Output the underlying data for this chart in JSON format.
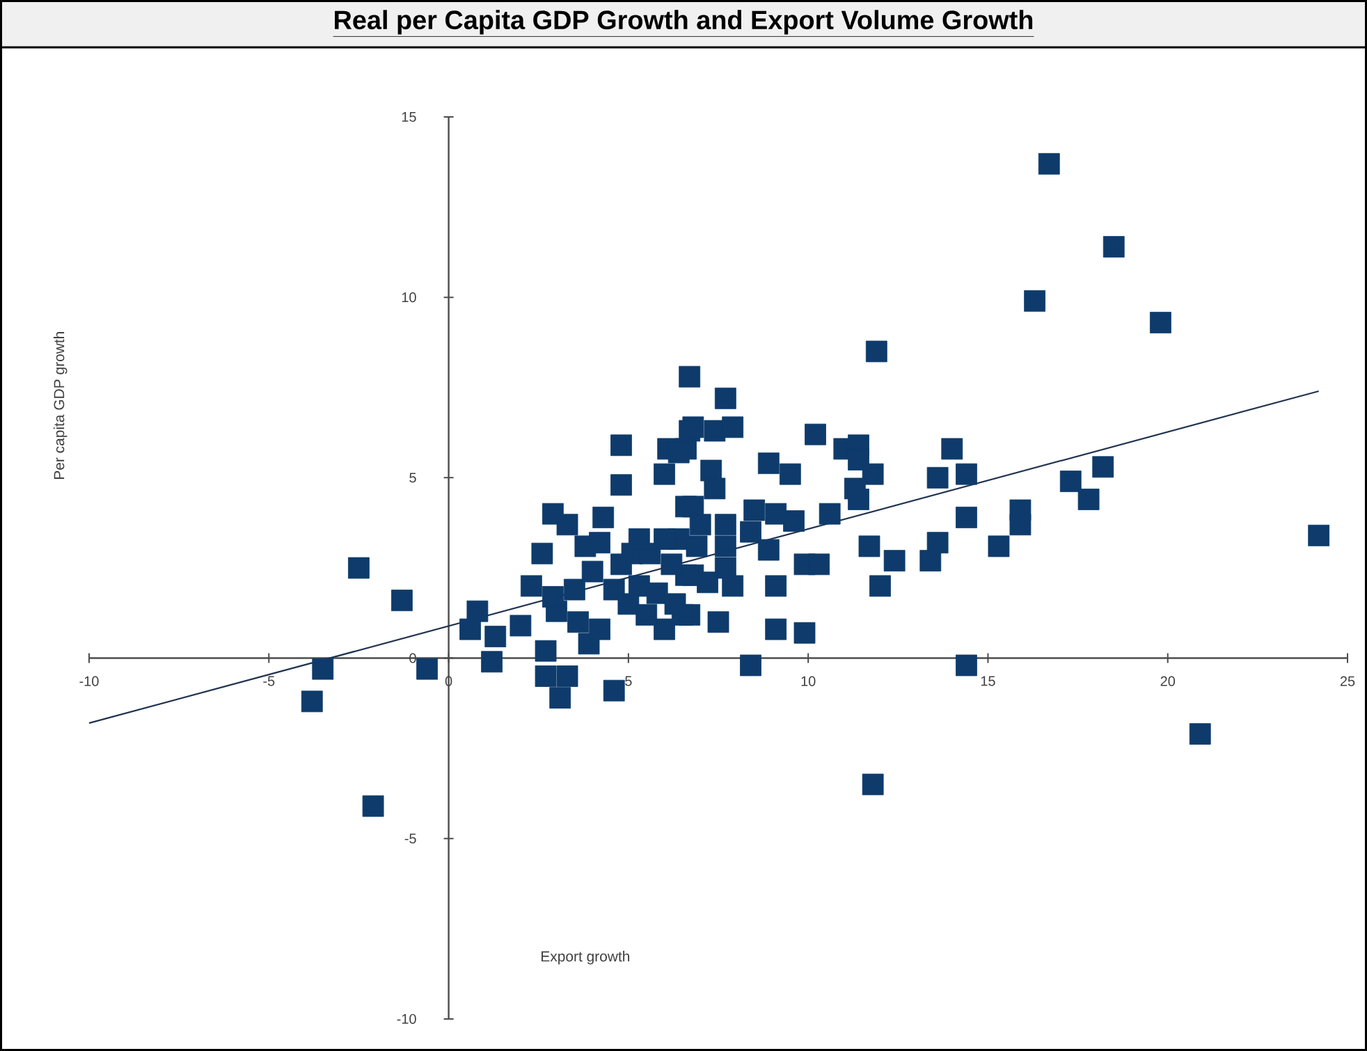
{
  "chart_data": {
    "type": "scatter",
    "title": "Real per Capita GDP Growth and Export Volume Growth",
    "xlabel": "Export growth",
    "ylabel": "Per capita GDP growth",
    "xlim": [
      -10,
      25
    ],
    "ylim": [
      -10,
      15
    ],
    "xticks": [
      -10,
      -5,
      0,
      5,
      10,
      15,
      20,
      25
    ],
    "yticks": [
      -10,
      -5,
      0,
      5,
      10,
      15
    ],
    "marker": "square",
    "series": [
      {
        "color": "#0e3b6b",
        "x": [
          16.7,
          18.5,
          16.3,
          19.8,
          18.2,
          17.3,
          17.8,
          24.2,
          20.9,
          -2.5,
          -3.5,
          -3.8,
          -2.1,
          -1.3,
          -0.6,
          0.8,
          0.6,
          1.3,
          1.2,
          2.7,
          2.7,
          3.3,
          3.1,
          4.6,
          4.8,
          4.8,
          2.9,
          3.3,
          4.3,
          2.6,
          2.3,
          2.0,
          6.1,
          6.6,
          6.0,
          6.7,
          6.6,
          3.8,
          6.6,
          6.0,
          3.9,
          4.2,
          3.0,
          3.5,
          4.6,
          5.3,
          5.1,
          5.6,
          4.2,
          11.9,
          6.7,
          7.7,
          6.8,
          7.4,
          7.9,
          10.2,
          6.4,
          11.0,
          11.4,
          11.4,
          14.0,
          8.9,
          9.5,
          11.8,
          13.6,
          14.4,
          7.3,
          7.4,
          11.3,
          11.4,
          6.8,
          8.5,
          9.1,
          10.6,
          9.6,
          15.9,
          15.9,
          14.4,
          7.7,
          7.0,
          6.4,
          8.4,
          6.9,
          7.7,
          8.9,
          11.7,
          13.6,
          13.4,
          12.4,
          15.3,
          9.9,
          10.3,
          6.8,
          7.7,
          7.9,
          9.1,
          12.0,
          6.5,
          9.1,
          9.9,
          8.4,
          14.4,
          11.8,
          5.0,
          5.5,
          5.8,
          6.2,
          6.0,
          5.3,
          4.0,
          3.6,
          2.9,
          4.8,
          6.3,
          7.2,
          7.5,
          6.7
        ],
        "values": [
          13.7,
          11.4,
          9.9,
          9.3,
          5.3,
          4.9,
          4.4,
          3.4,
          -2.1,
          2.5,
          -0.3,
          -1.2,
          -4.1,
          1.6,
          -0.3,
          1.3,
          0.8,
          0.6,
          -0.1,
          0.2,
          -0.5,
          -0.5,
          -1.1,
          -0.9,
          5.9,
          4.8,
          4.0,
          3.7,
          3.9,
          2.9,
          2.0,
          0.9,
          5.8,
          5.8,
          5.1,
          6.3,
          4.2,
          3.1,
          2.3,
          0.8,
          0.4,
          0.8,
          1.3,
          1.9,
          1.9,
          2.0,
          2.9,
          2.9,
          3.2,
          8.5,
          7.8,
          7.2,
          6.4,
          6.3,
          6.4,
          6.2,
          5.7,
          5.8,
          5.9,
          5.5,
          5.8,
          5.4,
          5.1,
          5.1,
          5.0,
          5.1,
          5.2,
          4.7,
          4.7,
          4.4,
          4.2,
          4.1,
          4.0,
          4.0,
          3.8,
          4.1,
          3.7,
          3.9,
          3.7,
          3.7,
          3.3,
          3.5,
          3.1,
          3.1,
          3.0,
          3.1,
          3.2,
          2.7,
          2.7,
          3.1,
          2.6,
          2.6,
          2.3,
          2.5,
          2.0,
          2.0,
          2.0,
          1.2,
          0.8,
          0.7,
          -0.2,
          -0.2,
          -3.5,
          1.5,
          1.2,
          1.8,
          2.6,
          3.3,
          3.3,
          2.4,
          1.0,
          1.7,
          2.6,
          1.5,
          2.1,
          1.0,
          1.2
        ]
      },
      {
        "type": "line",
        "marker": "none",
        "color": "#1f3350",
        "x": [
          -10,
          24.2
        ],
        "values": [
          -1.8,
          7.4
        ]
      }
    ]
  }
}
